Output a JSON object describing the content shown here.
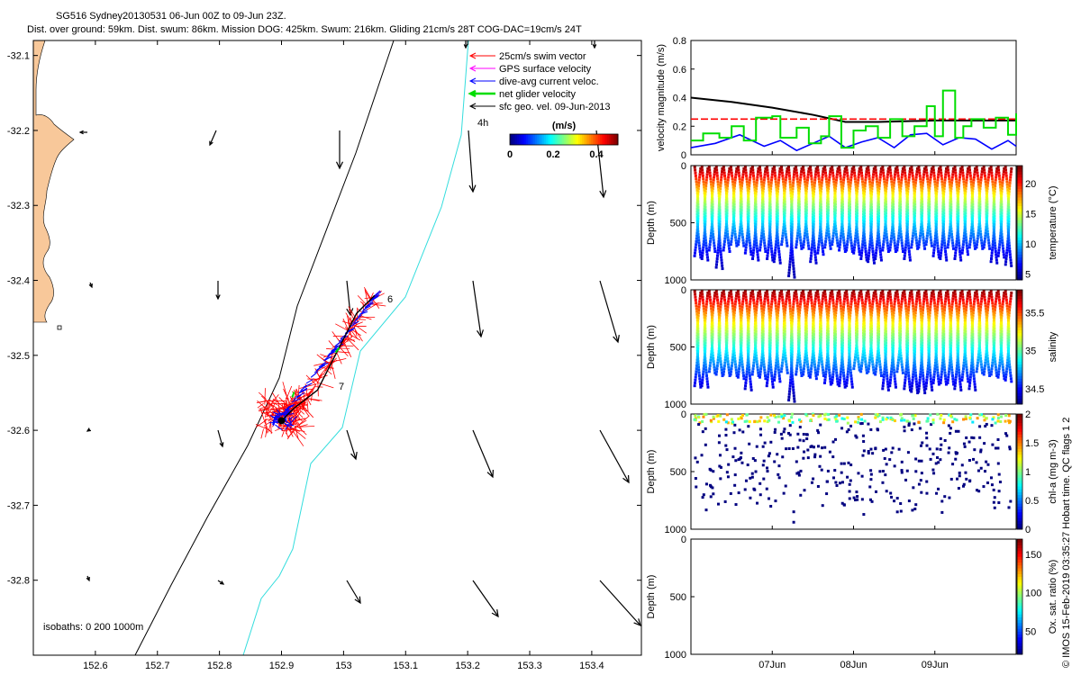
{
  "title": {
    "line1": "SG516 Sydney20130531 06-Jun 00Z to 09-Jun 23Z.",
    "line2": "Dist. over ground: 59km. Dist. swum: 86km. Mission DOG: 425km. Swum: 216km. Gliding 21cm/s 28T COG-DAC=19cm/s 24T"
  },
  "footer_credit": "© IMOS 15-Feb-2019 03:35:27 Hobart time. QC flags 1  2",
  "colors": {
    "coast": "#f8c89a",
    "isobath_200": "#000000",
    "isobath_1000": "#33dddd",
    "swim": "#ff0000",
    "gps": "#ff00ff",
    "dac": "#0000ff",
    "net": "#00dd00",
    "sfc": "#000000"
  },
  "chart_data": [
    {
      "type": "scatter",
      "name": "map",
      "xlabel": "",
      "ylabel": "",
      "xlim": [
        152.5,
        153.48
      ],
      "ylim": [
        -32.9,
        -32.08
      ],
      "xticks": [
        "152.6",
        "152.7",
        "152.8",
        "152.9",
        "153",
        "153.1",
        "153.2",
        "153.3",
        "153.4"
      ],
      "yticks": [
        "-32.1",
        "-32.2",
        "-32.3",
        "-32.4",
        "-32.5",
        "-32.6",
        "-32.7",
        "-32.8"
      ],
      "legend": [
        {
          "label": "25cm/s swim vector",
          "color": "#ff0000"
        },
        {
          "label": "GPS surface velocity",
          "color": "#ff00ff"
        },
        {
          "label": "dive-avg current veloc.",
          "color": "#0000ff"
        },
        {
          "label": "net glider velocity",
          "color": "#00dd00"
        },
        {
          "label": "sfc geo. vel. 09-Jun-2013",
          "color": "#000000"
        }
      ],
      "colorbar": {
        "label": "(m/s)",
        "ticks": [
          "0",
          "0.2",
          "0.4"
        ],
        "range": [
          0,
          0.5
        ]
      },
      "annotations": [
        "4h",
        "6",
        "7"
      ],
      "isobath_note": "isobaths: 0   200  1000m",
      "track_start": [
        152.9,
        -32.58
      ],
      "track_end": [
        153.05,
        -32.42
      ]
    },
    {
      "type": "line",
      "name": "velocity",
      "ylabel": "velocity magnitude (m/s)",
      "ylim": [
        0,
        0.8
      ],
      "yticks": [
        "0",
        "0.2",
        "0.4",
        "0.6",
        "0.8"
      ],
      "xlim": [
        0,
        4
      ],
      "series": [
        {
          "name": "sfc",
          "color": "#000000",
          "x": [
            0,
            0.5,
            1,
            1.5,
            1.9,
            2.3,
            3,
            3.5,
            4
          ],
          "values": [
            0.4,
            0.37,
            0.33,
            0.28,
            0.23,
            0.23,
            0.24,
            0.24,
            0.24
          ]
        },
        {
          "name": "swim",
          "color": "#ff0000",
          "x": [
            0,
            4
          ],
          "values": [
            0.25,
            0.25
          ]
        },
        {
          "name": "dac",
          "color": "#0000ff",
          "x": [
            0,
            0.3,
            0.6,
            0.9,
            1.1,
            1.3,
            1.5,
            1.7,
            1.9,
            2.1,
            2.3,
            2.5,
            2.7,
            2.9,
            3.1,
            3.3,
            3.5,
            3.7,
            3.9,
            4
          ],
          "values": [
            0.05,
            0.08,
            0.14,
            0.06,
            0.1,
            0.03,
            0.08,
            0.13,
            0.05,
            0.09,
            0.12,
            0.05,
            0.14,
            0.15,
            0.07,
            0.12,
            0.11,
            0.04,
            0.1,
            0.06
          ]
        },
        {
          "name": "net",
          "color": "#00dd00",
          "x": [
            0,
            0.15,
            0.35,
            0.5,
            0.65,
            0.8,
            1.0,
            1.1,
            1.3,
            1.45,
            1.6,
            1.7,
            1.85,
            2.0,
            2.15,
            2.3,
            2.45,
            2.6,
            2.75,
            2.9,
            3.0,
            3.1,
            3.25,
            3.35,
            3.45,
            3.6,
            3.75,
            3.9,
            4
          ],
          "values": [
            0.1,
            0.15,
            0.12,
            0.2,
            0.1,
            0.26,
            0.27,
            0.12,
            0.19,
            0.08,
            0.13,
            0.27,
            0.05,
            0.17,
            0.2,
            0.12,
            0.25,
            0.13,
            0.2,
            0.34,
            0.13,
            0.45,
            0.12,
            0.2,
            0.25,
            0.19,
            0.26,
            0.14,
            0.29
          ]
        }
      ]
    },
    {
      "type": "scatter",
      "name": "temperature",
      "ylabel": "Depth (m)",
      "yticks": [
        "0",
        "500",
        "1000"
      ],
      "ylim": [
        1000,
        0
      ],
      "colorbar": {
        "label": "temperature (°C)",
        "ticks": [
          "5",
          "10",
          "15",
          "20"
        ],
        "range": [
          4,
          23
        ]
      }
    },
    {
      "type": "scatter",
      "name": "salinity",
      "ylabel": "Depth (m)",
      "yticks": [
        "0",
        "500",
        "1000"
      ],
      "ylim": [
        1000,
        0
      ],
      "colorbar": {
        "label": "salinity",
        "ticks": [
          "34.5",
          "35",
          "35.5"
        ],
        "range": [
          34.3,
          35.8
        ]
      }
    },
    {
      "type": "scatter",
      "name": "chla",
      "ylabel": "Depth (m)",
      "yticks": [
        "0",
        "500",
        "1000"
      ],
      "ylim": [
        1000,
        0
      ],
      "colorbar": {
        "label": "chl-a (mg m-3)",
        "ticks": [
          "0",
          "0.5",
          "1",
          "1.5",
          "2"
        ],
        "range": [
          0,
          2
        ]
      }
    },
    {
      "type": "scatter",
      "name": "oxygen",
      "ylabel": "Depth (m)",
      "yticks": [
        "0",
        "500",
        "1000"
      ],
      "ylim": [
        1000,
        0
      ],
      "colorbar": {
        "label": "Ox. sat. ratio (%)",
        "ticks": [
          "50",
          "100",
          "150"
        ],
        "range": [
          20,
          170
        ]
      }
    },
    {
      "type": "line",
      "name": "time-axis",
      "xticks": [
        "07Jun",
        "08Jun",
        "09Jun"
      ],
      "tick_days": [
        1,
        2,
        3
      ]
    }
  ]
}
